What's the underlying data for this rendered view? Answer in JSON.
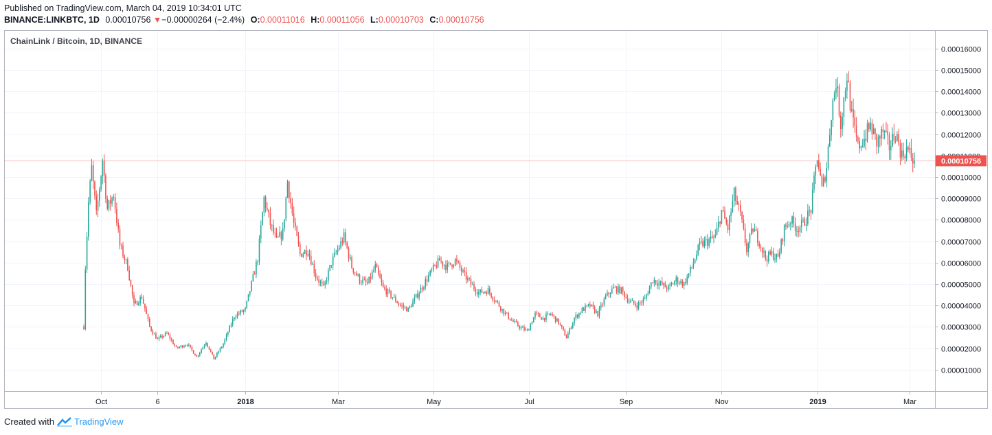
{
  "header": {
    "published": "Published on TradingView.com, March 04, 2019 10:34:01 UTC",
    "symbol": "BINANCE:LINKBTC, 1D",
    "last": "0.00010756",
    "change": "−0.00000264 (−2.4%)",
    "o_label": "O:",
    "o": "0.00011016",
    "h_label": "H:",
    "h": "0.00011056",
    "l_label": "L:",
    "l": "0.00010703",
    "c_label": "C:",
    "c": "0.00010756"
  },
  "footer": {
    "created_with": "Created with",
    "brand": "TradingView"
  },
  "colors": {
    "up": "#26a69a",
    "down": "#ef5350",
    "grid": "#f0f3fa",
    "axis": "#131722",
    "brand": "#2196f3"
  },
  "chart_data": {
    "type": "candlestick",
    "title": "ChainLink / Bitcoin, 1D, BINANCE",
    "ylim": [
      0,
      0.000166
    ],
    "y_ticks": [
      "0.00001000",
      "0.00002000",
      "0.00003000",
      "0.00004000",
      "0.00005000",
      "0.00006000",
      "0.00007000",
      "0.00008000",
      "0.00009000",
      "0.00010000",
      "0.00011000",
      "0.00012000",
      "0.00013000",
      "0.00014000",
      "0.00015000",
      "0.00016000"
    ],
    "y_tick_values": [
      1e-05,
      2e-05,
      3e-05,
      4e-05,
      5e-05,
      6e-05,
      7e-05,
      8e-05,
      9e-05,
      0.0001,
      0.00011,
      0.00012,
      0.00013,
      0.00014,
      0.00015,
      0.00016
    ],
    "x_ticks": [
      {
        "label": "Oct",
        "date": "2017-10-01",
        "bold": false
      },
      {
        "label": "6",
        "date": "2017-11-06",
        "bold": false
      },
      {
        "label": "2018",
        "date": "2018-01-01",
        "bold": true
      },
      {
        "label": "Mar",
        "date": "2018-03-01",
        "bold": false
      },
      {
        "label": "May",
        "date": "2018-05-01",
        "bold": false
      },
      {
        "label": "Jul",
        "date": "2018-07-01",
        "bold": false
      },
      {
        "label": "Sep",
        "date": "2018-09-01",
        "bold": false
      },
      {
        "label": "Nov",
        "date": "2018-11-01",
        "bold": false
      },
      {
        "label": "2019",
        "date": "2019-01-01",
        "bold": true
      },
      {
        "label": "Mar",
        "date": "2019-03-01",
        "bold": false
      }
    ],
    "start_date": "2017-09-20",
    "end_date": "2019-03-04",
    "last_price_label": "0.00010756",
    "last_price": 0.00010756,
    "closes": [
      {
        "date": "2017-09-20",
        "close": 3e-05
      },
      {
        "date": "2017-09-21",
        "close": 5.8e-05
      },
      {
        "date": "2017-09-23",
        "close": 8.8e-05
      },
      {
        "date": "2017-09-25",
        "close": 0.000104
      },
      {
        "date": "2017-09-28",
        "close": 8.2e-05
      },
      {
        "date": "2017-10-02",
        "close": 0.000108
      },
      {
        "date": "2017-10-05",
        "close": 8.5e-05
      },
      {
        "date": "2017-10-09",
        "close": 9.2e-05
      },
      {
        "date": "2017-10-13",
        "close": 6.8e-05
      },
      {
        "date": "2017-10-18",
        "close": 5.8e-05
      },
      {
        "date": "2017-10-22",
        "close": 4e-05
      },
      {
        "date": "2017-10-27",
        "close": 4.4e-05
      },
      {
        "date": "2017-11-01",
        "close": 3e-05
      },
      {
        "date": "2017-11-06",
        "close": 2.4e-05
      },
      {
        "date": "2017-11-12",
        "close": 2.7e-05
      },
      {
        "date": "2017-11-18",
        "close": 2e-05
      },
      {
        "date": "2017-11-25",
        "close": 2.2e-05
      },
      {
        "date": "2017-12-01",
        "close": 1.6e-05
      },
      {
        "date": "2017-12-07",
        "close": 2.3e-05
      },
      {
        "date": "2017-12-12",
        "close": 1.5e-05
      },
      {
        "date": "2017-12-18",
        "close": 2.2e-05
      },
      {
        "date": "2017-12-25",
        "close": 3.5e-05
      },
      {
        "date": "2018-01-01",
        "close": 3.8e-05
      },
      {
        "date": "2018-01-05",
        "close": 5e-05
      },
      {
        "date": "2018-01-09",
        "close": 6.2e-05
      },
      {
        "date": "2018-01-13",
        "close": 9e-05
      },
      {
        "date": "2018-01-17",
        "close": 7.8e-05
      },
      {
        "date": "2018-01-21",
        "close": 7e-05
      },
      {
        "date": "2018-01-25",
        "close": 7.4e-05
      },
      {
        "date": "2018-01-28",
        "close": 9.8e-05
      },
      {
        "date": "2018-02-01",
        "close": 7.8e-05
      },
      {
        "date": "2018-02-05",
        "close": 6.4e-05
      },
      {
        "date": "2018-02-10",
        "close": 6.6e-05
      },
      {
        "date": "2018-02-15",
        "close": 5.4e-05
      },
      {
        "date": "2018-02-20",
        "close": 4.8e-05
      },
      {
        "date": "2018-02-25",
        "close": 6e-05
      },
      {
        "date": "2018-03-01",
        "close": 6.6e-05
      },
      {
        "date": "2018-03-05",
        "close": 7.2e-05
      },
      {
        "date": "2018-03-10",
        "close": 5.8e-05
      },
      {
        "date": "2018-03-15",
        "close": 5.2e-05
      },
      {
        "date": "2018-03-20",
        "close": 5e-05
      },
      {
        "date": "2018-03-25",
        "close": 5.8e-05
      },
      {
        "date": "2018-03-30",
        "close": 4.8e-05
      },
      {
        "date": "2018-04-05",
        "close": 4.4e-05
      },
      {
        "date": "2018-04-10",
        "close": 4e-05
      },
      {
        "date": "2018-04-15",
        "close": 3.8e-05
      },
      {
        "date": "2018-04-20",
        "close": 4.4e-05
      },
      {
        "date": "2018-04-25",
        "close": 5e-05
      },
      {
        "date": "2018-04-30",
        "close": 5.6e-05
      },
      {
        "date": "2018-05-05",
        "close": 6.1e-05
      },
      {
        "date": "2018-05-10",
        "close": 5.8e-05
      },
      {
        "date": "2018-05-15",
        "close": 6.1e-05
      },
      {
        "date": "2018-05-20",
        "close": 5.5e-05
      },
      {
        "date": "2018-05-25",
        "close": 5e-05
      },
      {
        "date": "2018-05-30",
        "close": 4.6e-05
      },
      {
        "date": "2018-06-05",
        "close": 4.7e-05
      },
      {
        "date": "2018-06-10",
        "close": 4.2e-05
      },
      {
        "date": "2018-06-15",
        "close": 3.7e-05
      },
      {
        "date": "2018-06-20",
        "close": 3.3e-05
      },
      {
        "date": "2018-06-25",
        "close": 3e-05
      },
      {
        "date": "2018-06-30",
        "close": 2.8e-05
      },
      {
        "date": "2018-07-05",
        "close": 3.6e-05
      },
      {
        "date": "2018-07-10",
        "close": 3.4e-05
      },
      {
        "date": "2018-07-15",
        "close": 3.6e-05
      },
      {
        "date": "2018-07-20",
        "close": 3.2e-05
      },
      {
        "date": "2018-07-25",
        "close": 2.5e-05
      },
      {
        "date": "2018-07-30",
        "close": 3.4e-05
      },
      {
        "date": "2018-08-04",
        "close": 3.8e-05
      },
      {
        "date": "2018-08-09",
        "close": 4e-05
      },
      {
        "date": "2018-08-14",
        "close": 3.6e-05
      },
      {
        "date": "2018-08-19",
        "close": 4.4e-05
      },
      {
        "date": "2018-08-24",
        "close": 4.8e-05
      },
      {
        "date": "2018-08-29",
        "close": 4.7e-05
      },
      {
        "date": "2018-09-03",
        "close": 4.2e-05
      },
      {
        "date": "2018-09-08",
        "close": 4e-05
      },
      {
        "date": "2018-09-13",
        "close": 4.3e-05
      },
      {
        "date": "2018-09-18",
        "close": 5.2e-05
      },
      {
        "date": "2018-09-23",
        "close": 5e-05
      },
      {
        "date": "2018-09-28",
        "close": 4.8e-05
      },
      {
        "date": "2018-10-03",
        "close": 5.2e-05
      },
      {
        "date": "2018-10-08",
        "close": 5e-05
      },
      {
        "date": "2018-10-13",
        "close": 5.8e-05
      },
      {
        "date": "2018-10-18",
        "close": 6.8e-05
      },
      {
        "date": "2018-10-23",
        "close": 7e-05
      },
      {
        "date": "2018-10-28",
        "close": 7.2e-05
      },
      {
        "date": "2018-11-01",
        "close": 8.4e-05
      },
      {
        "date": "2018-11-05",
        "close": 7.6e-05
      },
      {
        "date": "2018-11-09",
        "close": 9.2e-05
      },
      {
        "date": "2018-11-13",
        "close": 8.2e-05
      },
      {
        "date": "2018-11-17",
        "close": 6.6e-05
      },
      {
        "date": "2018-11-21",
        "close": 7.6e-05
      },
      {
        "date": "2018-11-25",
        "close": 7e-05
      },
      {
        "date": "2018-11-29",
        "close": 6.2e-05
      },
      {
        "date": "2018-12-03",
        "close": 6.4e-05
      },
      {
        "date": "2018-12-07",
        "close": 6.2e-05
      },
      {
        "date": "2018-12-11",
        "close": 7.6e-05
      },
      {
        "date": "2018-12-15",
        "close": 8e-05
      },
      {
        "date": "2018-12-19",
        "close": 7.6e-05
      },
      {
        "date": "2018-12-23",
        "close": 7.8e-05
      },
      {
        "date": "2018-12-28",
        "close": 8.5e-05
      },
      {
        "date": "2019-01-01",
        "close": 0.00011
      },
      {
        "date": "2019-01-04",
        "close": 9.4e-05
      },
      {
        "date": "2019-01-07",
        "close": 0.000105
      },
      {
        "date": "2019-01-10",
        "close": 0.00013
      },
      {
        "date": "2019-01-13",
        "close": 0.000145
      },
      {
        "date": "2019-01-16",
        "close": 0.000125
      },
      {
        "date": "2019-01-20",
        "close": 0.000148
      },
      {
        "date": "2019-01-23",
        "close": 0.000128
      },
      {
        "date": "2019-01-27",
        "close": 0.000114
      },
      {
        "date": "2019-01-31",
        "close": 0.000118
      },
      {
        "date": "2019-02-04",
        "close": 0.000124
      },
      {
        "date": "2019-02-08",
        "close": 0.000116
      },
      {
        "date": "2019-02-12",
        "close": 0.000121
      },
      {
        "date": "2019-02-16",
        "close": 0.000114
      },
      {
        "date": "2019-02-20",
        "close": 0.000121
      },
      {
        "date": "2019-02-24",
        "close": 0.00011
      },
      {
        "date": "2019-02-27",
        "close": 0.000113
      },
      {
        "date": "2019-03-04",
        "close": 0.00010756
      }
    ]
  }
}
